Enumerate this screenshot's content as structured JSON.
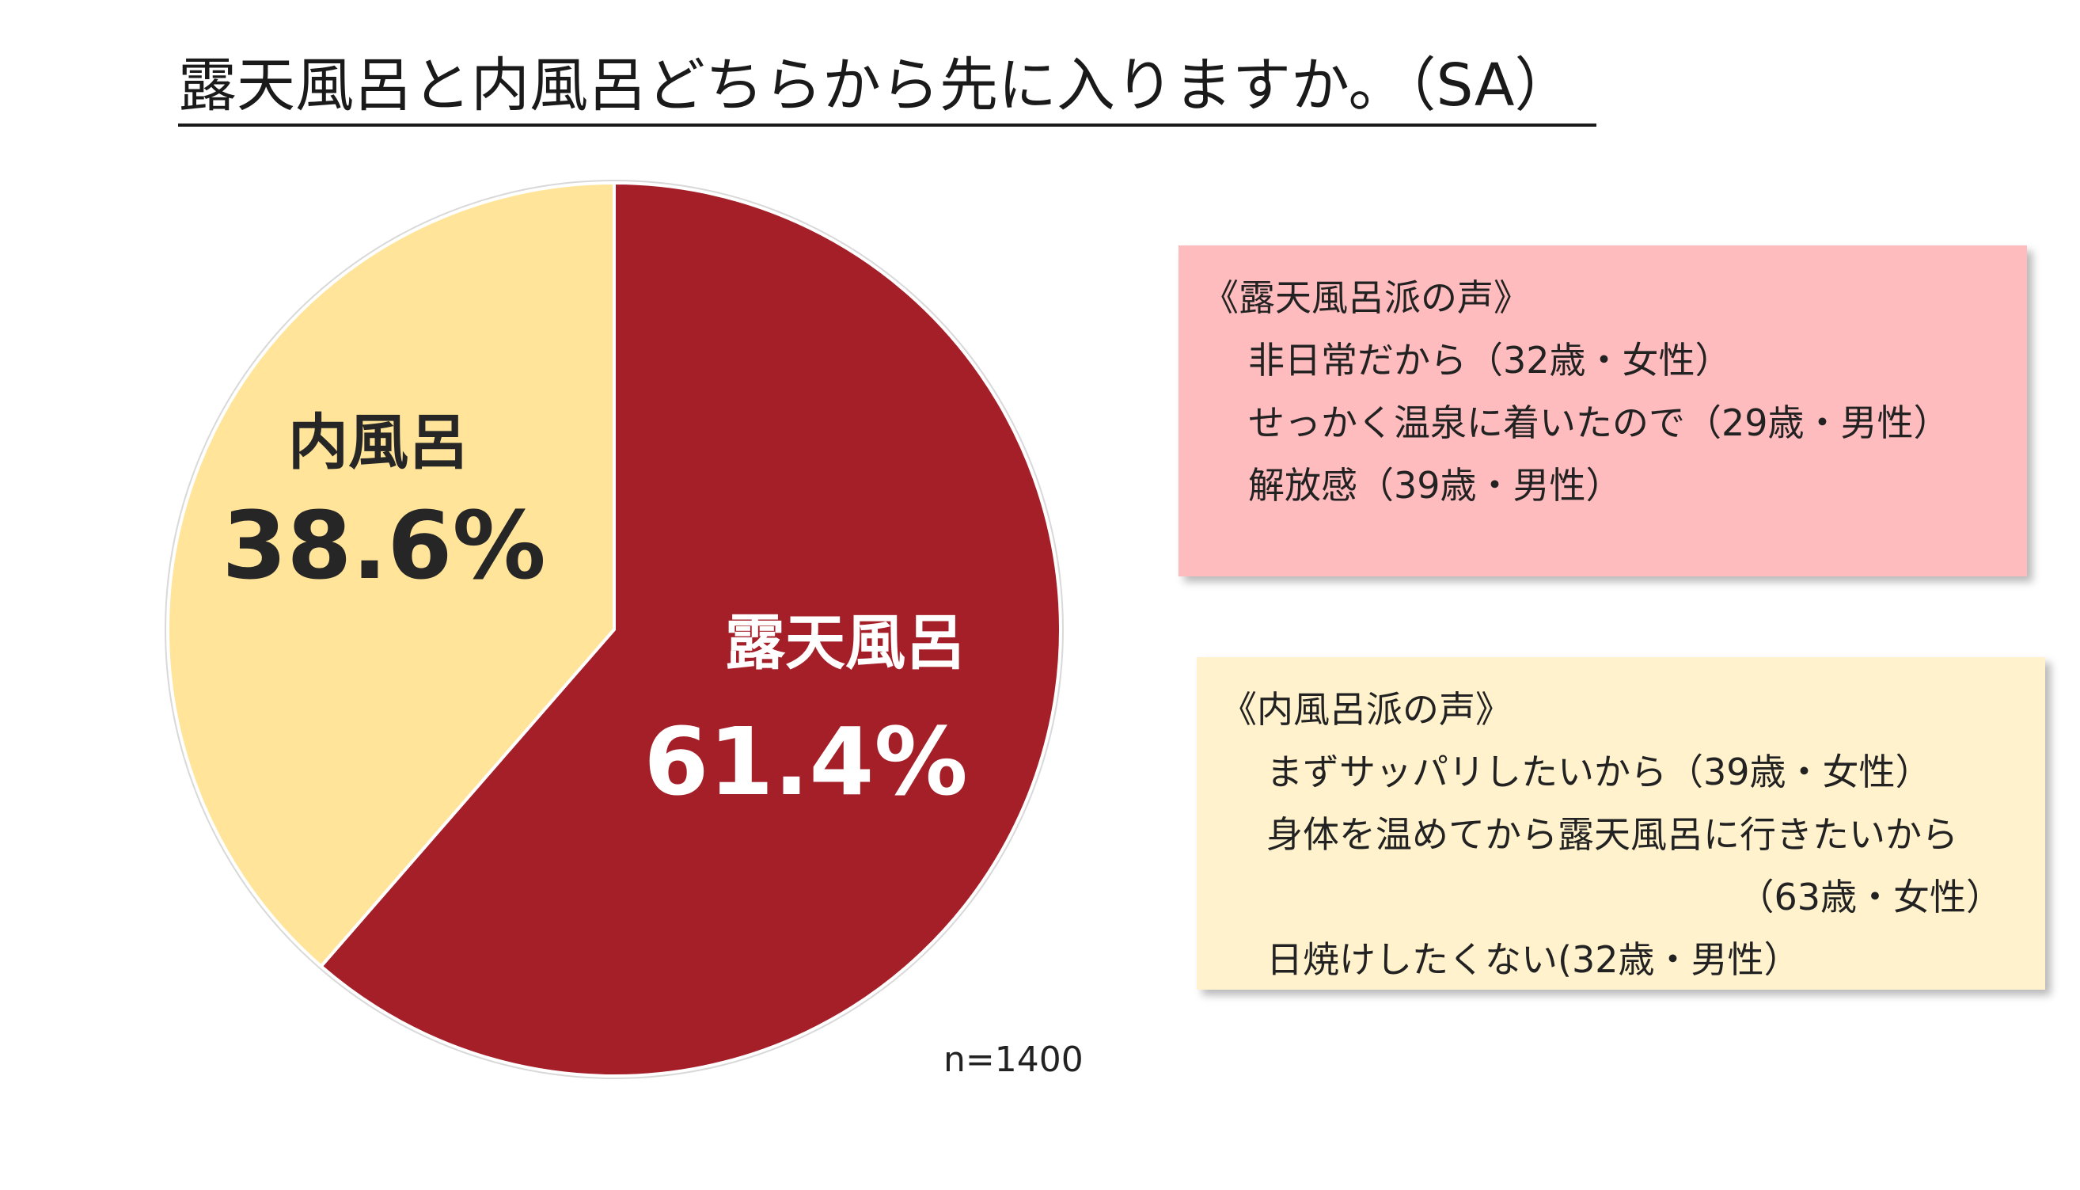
{
  "title": "露天風呂と内風呂どちらから先に入りますか。（SA）",
  "sample_size": "n=1400",
  "colors": {
    "outdoor": "#a51f28",
    "indoor": "#ffe499",
    "outdoor_box": "#ffbcbe",
    "indoor_box": "#fff2cc",
    "pie_border": "#d9d9d9"
  },
  "chart_data": {
    "type": "pie",
    "title": "露天風呂と内風呂どちらから先に入りますか。（SA）",
    "start_angle_deg": 0,
    "direction": "clockwise",
    "slices": [
      {
        "label": "露天風呂",
        "value": 61.4,
        "value_label": "61.4%",
        "color": "#a51f28",
        "text_color": "#ffffff"
      },
      {
        "label": "内風呂",
        "value": 38.6,
        "value_label": "38.6%",
        "color": "#ffe499",
        "text_color": "#262626"
      }
    ],
    "note": "n=1400"
  },
  "voices": {
    "outdoor": {
      "heading": "《露天風呂派の声》",
      "items": [
        {
          "text": "非日常だから（32歳・女性）"
        },
        {
          "text": "せっかく温泉に着いたので（29歳・男性）"
        },
        {
          "text": "解放感（39歳・男性）"
        }
      ]
    },
    "indoor": {
      "heading": "《内風呂派の声》",
      "items": [
        {
          "text": "まずサッパリしたいから（39歳・女性）"
        },
        {
          "text": "身体を温めてから露天風呂に行きたいから",
          "continuation": "（63歳・女性）"
        },
        {
          "text": "日焼けしたくない(32歳・男性）"
        }
      ]
    }
  }
}
